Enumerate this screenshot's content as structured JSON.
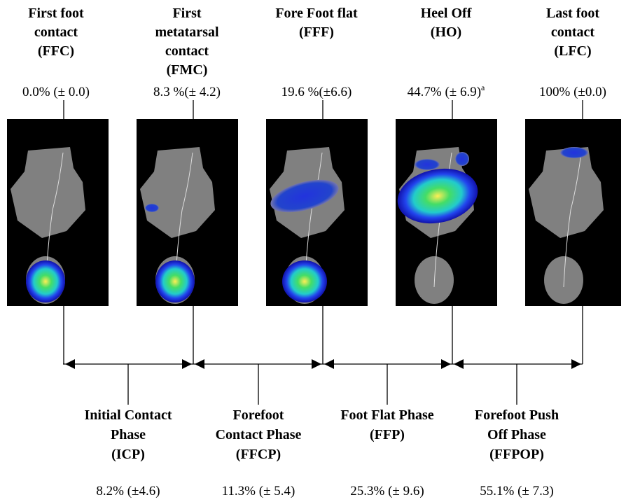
{
  "events": [
    {
      "title": [
        "First  foot",
        "contact",
        "(FFC)"
      ],
      "percent": "0.0% (± 0.0)"
    },
    {
      "title": [
        "First",
        "metatarsal",
        "contact",
        "(FMC)"
      ],
      "percent": "8.3 %(± 4.2)"
    },
    {
      "title": [
        "Fore Foot flat",
        "(FFF)"
      ],
      "percent": "19.6 %(±6.6)"
    },
    {
      "title": [
        "Heel Off",
        "(HO)"
      ],
      "percent": "44.7% (± 6.9)",
      "note": "a"
    },
    {
      "title": [
        "Last foot",
        "contact",
        "(LFC)"
      ],
      "percent": "100% (±0.0)"
    }
  ],
  "phases": [
    {
      "name": [
        "Initial Contact",
        "Phase",
        "(ICP)"
      ],
      "percent": "8.2% (±4.6)"
    },
    {
      "name": [
        "Forefoot",
        "Contact Phase",
        "(FFCP)"
      ],
      "percent": "11.3% (± 5.4)"
    },
    {
      "name": [
        "Foot Flat Phase",
        "(FFP)"
      ],
      "percent": "25.3% (± 9.6)"
    },
    {
      "name": [
        "Forefoot Push",
        "Off Phase",
        "(FFPOP)"
      ],
      "percent": "55.1% (± 7.3)"
    }
  ]
}
